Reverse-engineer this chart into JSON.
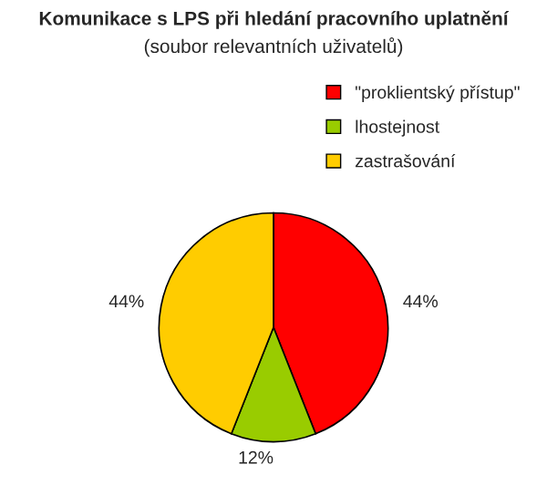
{
  "chart_data": {
    "type": "pie",
    "title": "Komunikace s LPS při hledání pracovního uplatnění",
    "subtitle": "(soubor relevantních uživatelů)",
    "categories": [
      "\"proklientský přístup\"",
      "lhostejnost",
      "zastrašování"
    ],
    "values": [
      44,
      12,
      44
    ],
    "value_labels": [
      "44%",
      "12%",
      "44%"
    ],
    "colors": [
      "#ff0000",
      "#99cc00",
      "#ffcc00"
    ],
    "legend": "top right"
  }
}
